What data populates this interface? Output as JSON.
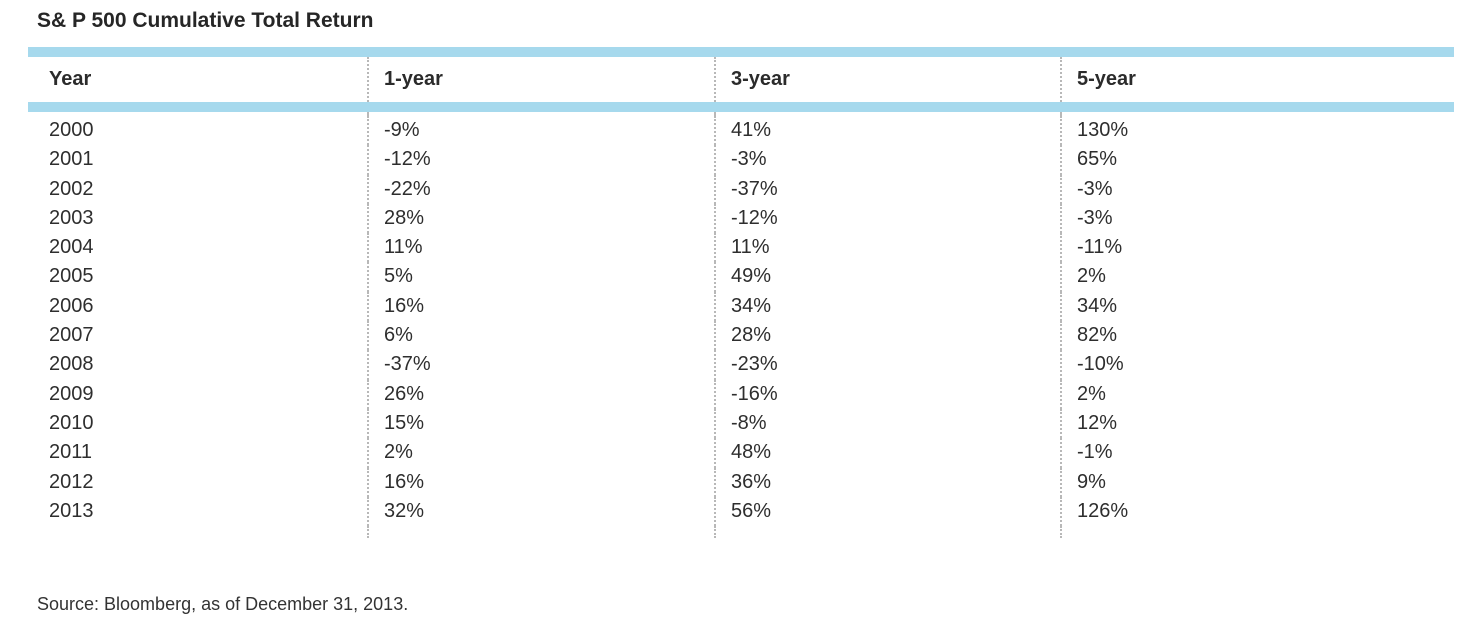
{
  "title": "S& P 500 Cumulative Total Return",
  "source_note": "Source: Bloomberg, as of December 31, 2013.",
  "colors": {
    "accent_bar": "#A6D9ED",
    "column_divider": "#B8B8B8",
    "title_text": "#262626",
    "body_text": "#2E2E2E",
    "background": "#FFFFFF"
  },
  "chart_data": {
    "type": "table",
    "title": "S& P 500 Cumulative Total Return",
    "columns": [
      "Year",
      "1-year",
      "3-year",
      "5-year"
    ],
    "rows": [
      [
        "2000",
        "-9%",
        "41%",
        "130%"
      ],
      [
        "2001",
        "-12%",
        "-3%",
        "65%"
      ],
      [
        "2002",
        "-22%",
        "-37%",
        "-3%"
      ],
      [
        "2003",
        "28%",
        "-12%",
        "-3%"
      ],
      [
        "2004",
        "11%",
        "11%",
        "-11%"
      ],
      [
        "2005",
        "5%",
        "49%",
        "2%"
      ],
      [
        "2006",
        "16%",
        "34%",
        "34%"
      ],
      [
        "2007",
        "6%",
        "28%",
        "82%"
      ],
      [
        "2008",
        "-37%",
        "-23%",
        "-10%"
      ],
      [
        "2009",
        "26%",
        "-16%",
        "2%"
      ],
      [
        "2010",
        "15%",
        "-8%",
        "12%"
      ],
      [
        "2011",
        "2%",
        "48%",
        "-1%"
      ],
      [
        "2012",
        "16%",
        "36%",
        "9%"
      ],
      [
        "2013",
        "32%",
        "56%",
        "126%"
      ]
    ],
    "source": "Source: Bloomberg, as of December 31, 2013."
  }
}
